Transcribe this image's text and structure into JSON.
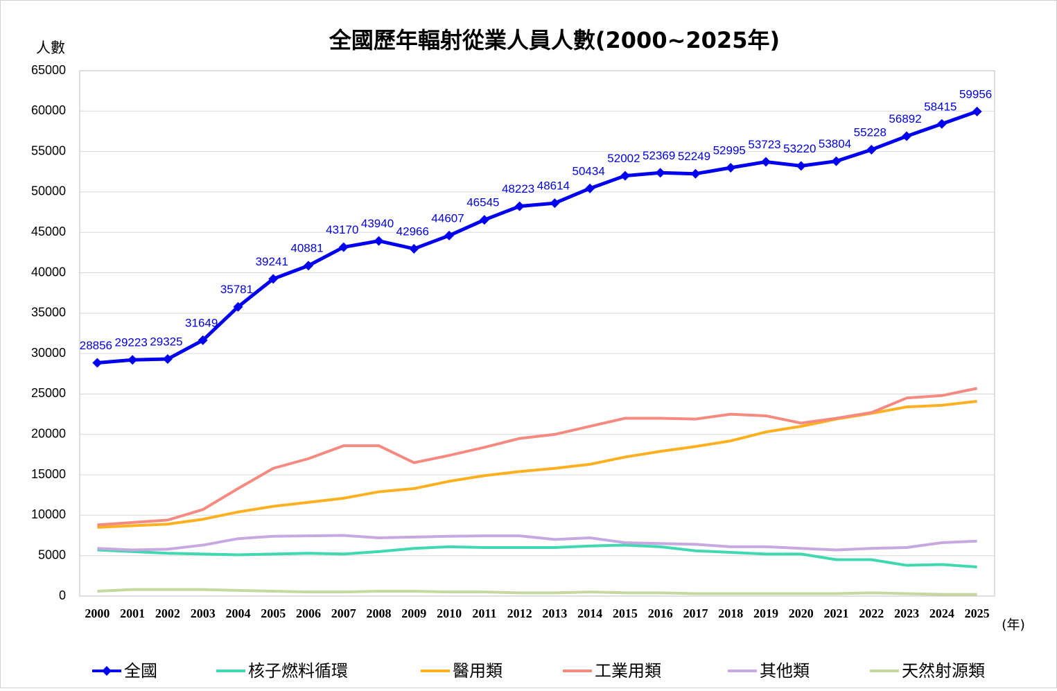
{
  "chart_data": {
    "type": "line",
    "title": "全國歷年輻射從業人員人數(2000~2025年)",
    "y_label": "人數",
    "x_label": "(年)",
    "categories": [
      "2000",
      "2001",
      "2002",
      "2003",
      "2004",
      "2005",
      "2006",
      "2007",
      "2008",
      "2009",
      "2010",
      "2011",
      "2012",
      "2013",
      "2014",
      "2015",
      "2016",
      "2017",
      "2018",
      "2019",
      "2020",
      "2021",
      "2022",
      "2023",
      "2024",
      "2025"
    ],
    "series": [
      {
        "name": "全國",
        "color": "#0000ee",
        "markers": true,
        "data_labels": true,
        "values": [
          28856,
          29223,
          29325,
          31649,
          35781,
          39241,
          40881,
          43170,
          43940,
          42966,
          44607,
          46545,
          48223,
          48614,
          50434,
          52002,
          52369,
          52249,
          52995,
          53723,
          53220,
          53804,
          55228,
          56892,
          58415,
          59956
        ]
      },
      {
        "name": "核子燃料循環",
        "color": "#40d8b0",
        "values": [
          5700,
          5500,
          5300,
          5200,
          5100,
          5200,
          5300,
          5200,
          5500,
          5900,
          6100,
          6000,
          6000,
          6000,
          6200,
          6300,
          6100,
          5600,
          5400,
          5200,
          5200,
          4500,
          4500,
          3800,
          3900,
          3600
        ]
      },
      {
        "name": "醫用類",
        "color": "#ffb020",
        "values": [
          8500,
          8700,
          8900,
          9500,
          10400,
          11100,
          11600,
          12100,
          12900,
          13300,
          14200,
          14900,
          15400,
          15800,
          16300,
          17200,
          17900,
          18500,
          19200,
          20300,
          21000,
          21900,
          22600,
          23400,
          23600,
          24100
        ]
      },
      {
        "name": "工業用類",
        "color": "#f58a80",
        "values": [
          8800,
          9100,
          9400,
          10700,
          13300,
          15800,
          17000,
          18600,
          18600,
          16500,
          17400,
          18400,
          19500,
          20000,
          21000,
          22000,
          22000,
          21900,
          22500,
          22300,
          21400,
          22000,
          22700,
          24500,
          24800,
          25700
        ]
      },
      {
        "name": "其他類",
        "color": "#c8a8e0",
        "values": [
          5900,
          5700,
          5800,
          6300,
          7100,
          7400,
          7450,
          7500,
          7200,
          7300,
          7400,
          7450,
          7450,
          7000,
          7200,
          6600,
          6500,
          6400,
          6100,
          6100,
          5900,
          5700,
          5900,
          6000,
          6600,
          6800
        ]
      },
      {
        "name": "天然射源類",
        "color": "#c4d8a0",
        "values": [
          600,
          800,
          800,
          800,
          700,
          600,
          500,
          500,
          600,
          600,
          500,
          500,
          400,
          400,
          500,
          400,
          400,
          300,
          300,
          300,
          300,
          300,
          400,
          300,
          200,
          200
        ]
      }
    ],
    "ylim": [
      0,
      65000
    ],
    "yticks": [
      0,
      5000,
      10000,
      15000,
      20000,
      25000,
      30000,
      35000,
      40000,
      45000,
      50000,
      55000,
      60000,
      65000
    ],
    "grid": true,
    "legend": "bottom"
  }
}
